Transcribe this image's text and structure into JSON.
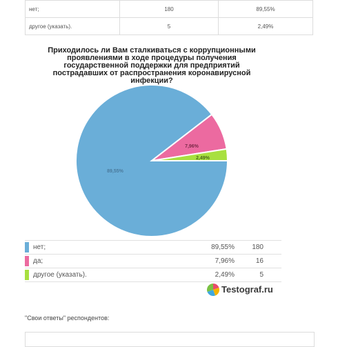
{
  "top_table": {
    "rows": [
      {
        "label": "нет;",
        "count": "180",
        "percent": "89,55%"
      },
      {
        "label": "другое (указать).",
        "count": "5",
        "percent": "2,49%"
      }
    ]
  },
  "chart_data": {
    "type": "pie",
    "title": "Приходилось ли Вам сталкиваться с коррупционными проявлениями в ходе процедуры получения государственной поддержки для предприятий пострадавших от распространения коронавирусной инфекции?",
    "slices": [
      {
        "name": "нет;",
        "value": 89.55,
        "label": "89,55%",
        "legend_percent": "89,55%",
        "count": "180",
        "color": "#6aaed8"
      },
      {
        "name": "да;",
        "value": 7.96,
        "label": "7,96%",
        "legend_percent": "7,96%",
        "count": "16",
        "color": "#ec6aa0"
      },
      {
        "name": "другое (указать).",
        "value": 2.49,
        "label": "2,49%",
        "legend_percent": "2,49%",
        "count": "5",
        "color": "#a8e040"
      }
    ],
    "legend_position": "bottom"
  },
  "brand": {
    "name": "Testograf.ru"
  },
  "own_answers": {
    "label": "\"Свои ответы\" респондентов:"
  }
}
